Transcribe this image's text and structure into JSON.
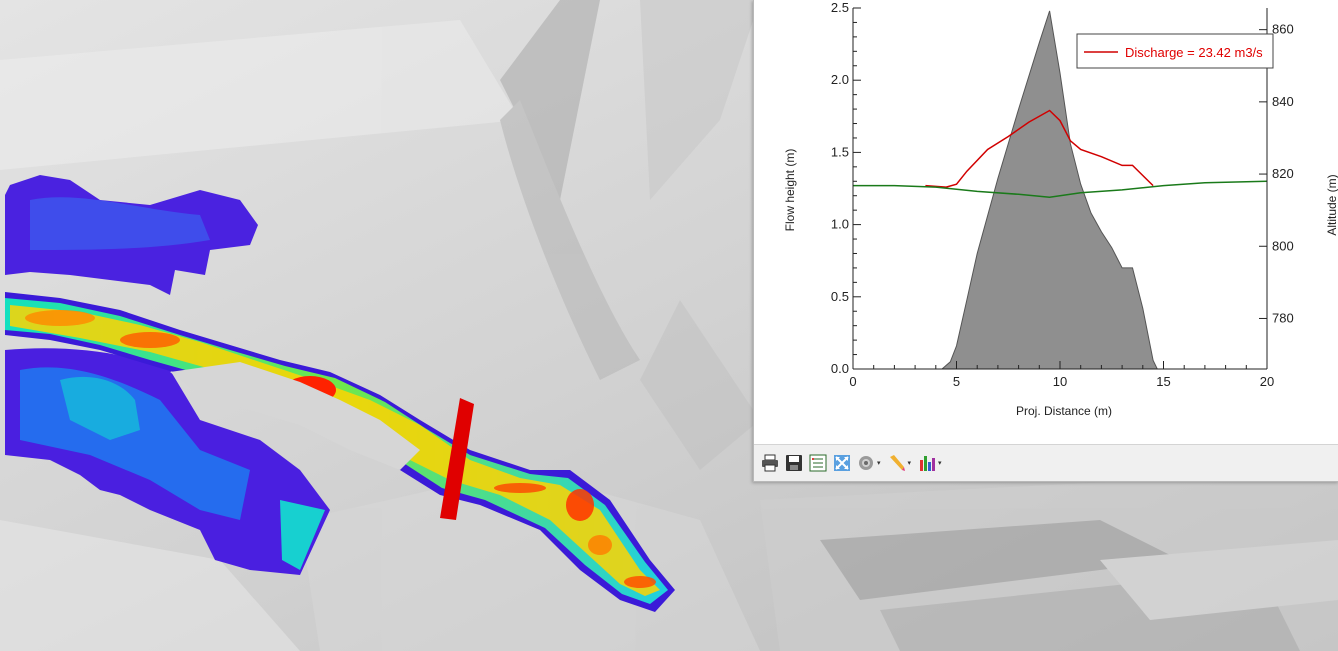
{
  "toolbar": {
    "buttons": [
      {
        "icon": "printer-icon"
      },
      {
        "icon": "save-icon"
      },
      {
        "icon": "data-table-icon"
      },
      {
        "icon": "zoom-extent-icon"
      },
      {
        "icon": "settings-gear-icon",
        "dropdown": true
      },
      {
        "icon": "pencil-icon",
        "dropdown": true
      },
      {
        "icon": "bar-chart-icon",
        "dropdown": true
      }
    ]
  },
  "colors": {
    "terrain_fill": "#8f8f8f",
    "discharge_line": "#d10000",
    "altitude_line": "#1a7a1a",
    "section_marker": "#e00000"
  },
  "chart_data": {
    "type": "line",
    "xlabel": "Proj. Distance (m)",
    "ylabel_left": "Flow height (m)",
    "ylabel_right": "Altitude (m)",
    "xlim": [
      0,
      20
    ],
    "ylim_left": [
      0,
      2.5
    ],
    "ylim_right": [
      766,
      866
    ],
    "x_ticks": [
      0,
      5,
      10,
      15,
      20
    ],
    "y_ticks_left": [
      "0.0",
      "0.5",
      "1.0",
      "1.5",
      "2.0",
      "2.5"
    ],
    "y_ticks_right": [
      780,
      800,
      820,
      840,
      860
    ],
    "legend": {
      "label": "Discharge = 23.42 m3/s",
      "position": "top-right"
    },
    "series": [
      {
        "name": "Discharge = 23.42 m3/s",
        "axis": "left",
        "kind": "line",
        "x": [
          3.5,
          4.5,
          5.0,
          5.5,
          6.5,
          7.5,
          8.5,
          9.5,
          10.0,
          10.5,
          11.0,
          12.0,
          13.0,
          13.5,
          14.0,
          14.5
        ],
        "y": [
          1.27,
          1.26,
          1.28,
          1.37,
          1.52,
          1.61,
          1.71,
          1.79,
          1.72,
          1.58,
          1.52,
          1.47,
          1.41,
          1.41,
          1.34,
          1.27
        ]
      },
      {
        "name": "",
        "axis": "left",
        "kind": "line",
        "x": [
          0,
          2,
          4,
          6,
          8,
          9.5,
          11,
          13,
          15,
          17,
          20
        ],
        "y": [
          1.27,
          1.27,
          1.26,
          1.23,
          1.21,
          1.19,
          1.22,
          1.24,
          1.27,
          1.29,
          1.3
        ]
      },
      {
        "name": "",
        "axis": "left",
        "kind": "area",
        "x": [
          4.3,
          4.7,
          5.0,
          5.5,
          6.0,
          7.0,
          8.0,
          9.0,
          9.5,
          10.0,
          10.5,
          11.0,
          11.5,
          12.0,
          12.5,
          13.0,
          13.5,
          14.0,
          14.5,
          14.7
        ],
        "y": [
          0.0,
          0.05,
          0.16,
          0.48,
          0.8,
          1.32,
          1.8,
          2.26,
          2.48,
          2.05,
          1.56,
          1.28,
          1.08,
          0.95,
          0.84,
          0.7,
          0.7,
          0.42,
          0.06,
          0.0
        ]
      }
    ]
  }
}
